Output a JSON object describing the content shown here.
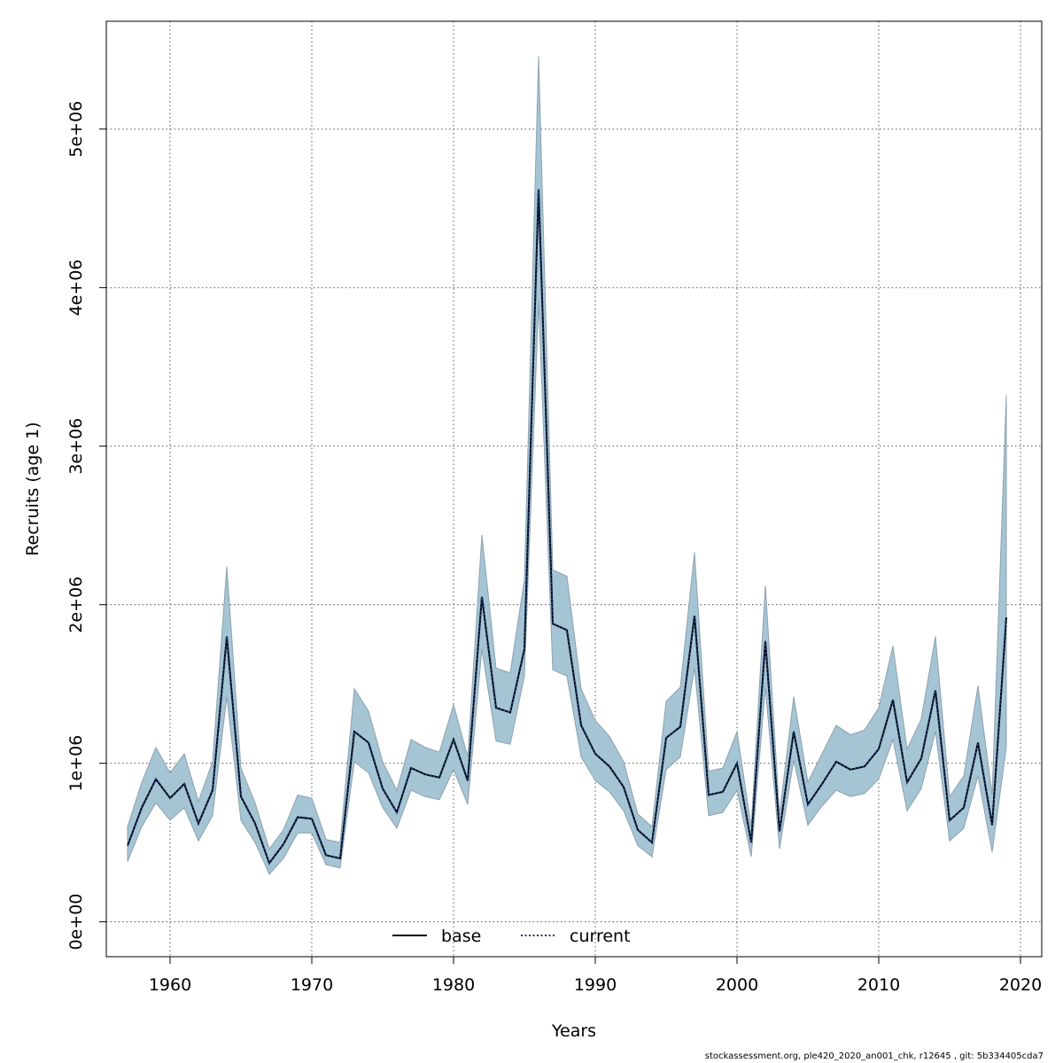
{
  "chart_data": {
    "type": "line",
    "xlabel": "Years",
    "ylabel": "Recruits (age 1)",
    "xlim": [
      1955.5,
      2021.5
    ],
    "ylim": [
      -220000,
      5680000
    ],
    "x_ticks": [
      1960,
      1970,
      1980,
      1990,
      2000,
      2010,
      2020
    ],
    "x_tick_labels": [
      "1960",
      "1970",
      "1980",
      "1990",
      "2000",
      "2010",
      "2020"
    ],
    "y_ticks": [
      0,
      1000000,
      2000000,
      3000000,
      4000000,
      5000000
    ],
    "y_tick_labels": [
      "0e+00",
      "1e+06",
      "2e+06",
      "3e+06",
      "4e+06",
      "5e+06"
    ],
    "grid": true,
    "legend": {
      "position": "bottom-center",
      "items": [
        "base",
        "current"
      ]
    },
    "colors": {
      "band_fill": "#a5c4d4",
      "band_edge": "#8da2ae",
      "base_line": "#000000",
      "current_line": "#1b3a7a",
      "grid": "#555555"
    },
    "x": [
      1957,
      1958,
      1959,
      1960,
      1961,
      1962,
      1963,
      1964,
      1965,
      1966,
      1967,
      1968,
      1969,
      1970,
      1971,
      1972,
      1973,
      1974,
      1975,
      1976,
      1977,
      1978,
      1979,
      1980,
      1981,
      1982,
      1983,
      1984,
      1985,
      1986,
      1987,
      1988,
      1989,
      1990,
      1991,
      1992,
      1993,
      1994,
      1995,
      1996,
      1997,
      1998,
      1999,
      2000,
      2001,
      2002,
      2003,
      2004,
      2005,
      2006,
      2007,
      2008,
      2009,
      2010,
      2011,
      2012,
      2013,
      2014,
      2015,
      2016,
      2017,
      2018,
      2019
    ],
    "series": [
      {
        "name": "base",
        "style": "solid",
        "values": [
          480000,
          720000,
          900000,
          780000,
          870000,
          620000,
          830000,
          1800000,
          790000,
          620000,
          370000,
          490000,
          660000,
          650000,
          420000,
          400000,
          1200000,
          1130000,
          840000,
          690000,
          970000,
          930000,
          910000,
          1150000,
          890000,
          2050000,
          1350000,
          1320000,
          1720000,
          4620000,
          1880000,
          1840000,
          1240000,
          1060000,
          980000,
          850000,
          580000,
          500000,
          1160000,
          1230000,
          1930000,
          800000,
          820000,
          1000000,
          500000,
          1770000,
          570000,
          1200000,
          740000,
          870000,
          1010000,
          960000,
          980000,
          1090000,
          1400000,
          880000,
          1030000,
          1460000,
          640000,
          720000,
          1130000,
          610000,
          1920000
        ]
      },
      {
        "name": "current",
        "style": "dotted",
        "values": [
          480000,
          720000,
          900000,
          780000,
          870000,
          620000,
          830000,
          1800000,
          790000,
          620000,
          370000,
          490000,
          660000,
          650000,
          420000,
          400000,
          1200000,
          1130000,
          840000,
          690000,
          970000,
          930000,
          910000,
          1150000,
          890000,
          2050000,
          1350000,
          1320000,
          1720000,
          4620000,
          1880000,
          1840000,
          1240000,
          1060000,
          980000,
          850000,
          580000,
          500000,
          1160000,
          1230000,
          1930000,
          800000,
          820000,
          1000000,
          500000,
          1770000,
          570000,
          1200000,
          740000,
          870000,
          1010000,
          960000,
          980000,
          1090000,
          1400000,
          880000,
          1030000,
          1460000,
          640000,
          720000,
          1130000,
          610000,
          1920000
        ]
      }
    ],
    "band_upper": [
      600000,
      880000,
      1100000,
      940000,
      1060000,
      760000,
      1010000,
      2240000,
      970000,
      750000,
      460000,
      580000,
      800000,
      780000,
      520000,
      500000,
      1470000,
      1330000,
      1010000,
      830000,
      1150000,
      1100000,
      1070000,
      1370000,
      1040000,
      2440000,
      1600000,
      1570000,
      2160000,
      5460000,
      2220000,
      2180000,
      1470000,
      1270000,
      1170000,
      1010000,
      680000,
      600000,
      1390000,
      1480000,
      2330000,
      950000,
      970000,
      1200000,
      600000,
      2120000,
      680000,
      1420000,
      880000,
      1060000,
      1240000,
      1180000,
      1210000,
      1350000,
      1740000,
      1090000,
      1280000,
      1800000,
      790000,
      920000,
      1490000,
      800000,
      3320000
    ],
    "band_lower": [
      380000,
      600000,
      750000,
      640000,
      720000,
      510000,
      670000,
      1420000,
      640000,
      500000,
      300000,
      400000,
      560000,
      560000,
      360000,
      340000,
      1010000,
      940000,
      720000,
      590000,
      830000,
      790000,
      770000,
      960000,
      740000,
      1720000,
      1140000,
      1120000,
      1550000,
      3910000,
      1590000,
      1550000,
      1040000,
      890000,
      820000,
      700000,
      480000,
      410000,
      960000,
      1040000,
      1600000,
      670000,
      690000,
      830000,
      410000,
      1480000,
      460000,
      1020000,
      610000,
      730000,
      830000,
      790000,
      810000,
      900000,
      1150000,
      700000,
      840000,
      1200000,
      510000,
      590000,
      920000,
      440000,
      1100000
    ]
  },
  "footer_text": "stockassessment.org, ple420_2020_an001_chk, r12645 , git: 5b334405cda7"
}
